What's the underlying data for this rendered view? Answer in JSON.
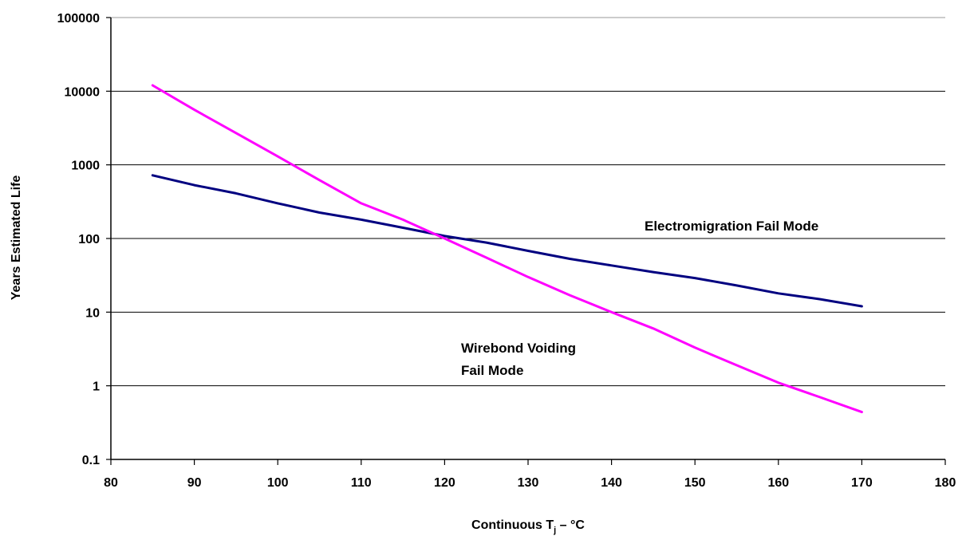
{
  "chart_data": {
    "type": "line",
    "title": "",
    "xlabel_main": "Continuous T",
    "xlabel_sub": "j",
    "xlabel_tail": " – °C",
    "ylabel": "Years Estimated Life",
    "xlim": [
      80,
      180
    ],
    "ylim": [
      0.1,
      100000
    ],
    "yscale": "log",
    "grid": "horizontal",
    "x_ticks": [
      "80",
      "90",
      "100",
      "110",
      "120",
      "130",
      "140",
      "150",
      "160",
      "170",
      "180"
    ],
    "y_ticks": [
      "0.1",
      "1",
      "10",
      "100",
      "1000",
      "10000",
      "100000"
    ],
    "series": [
      {
        "name": "Electromigration Fail Mode",
        "color": "#000080",
        "x": [
          85,
          90,
          95,
          100,
          105,
          110,
          115,
          120,
          125,
          130,
          135,
          140,
          145,
          150,
          155,
          160,
          165,
          170
        ],
        "y": [
          720,
          530,
          410,
          300,
          225,
          180,
          140,
          108,
          88,
          68,
          53,
          43,
          35,
          29,
          23,
          18,
          15,
          12
        ]
      },
      {
        "name": "Wirebond Voiding Fail Mode",
        "color": "#ff00ff",
        "x": [
          85,
          90,
          95,
          100,
          105,
          110,
          115,
          120,
          125,
          130,
          135,
          140,
          145,
          150,
          155,
          160,
          165,
          170
        ],
        "y": [
          12000,
          5600,
          2700,
          1300,
          620,
          300,
          180,
          100,
          55,
          30,
          17,
          10,
          6,
          3.3,
          1.9,
          1.1,
          0.7,
          0.44
        ]
      }
    ],
    "annotations": {
      "electromigration": "Electromigration Fail Mode",
      "wirebond_line1": "Wirebond Voiding",
      "wirebond_line2": "Fail Mode"
    }
  }
}
